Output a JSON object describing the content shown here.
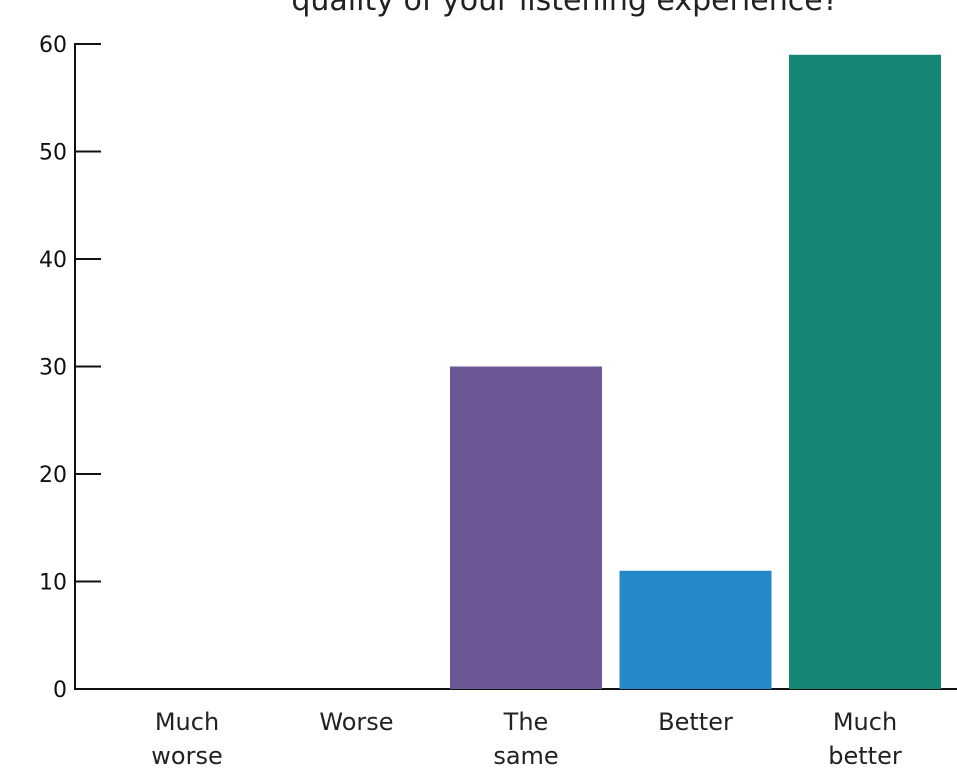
{
  "chart_data": {
    "type": "bar",
    "title": "quality of your listening experience?",
    "categories": [
      [
        "Much",
        "worse"
      ],
      [
        "Worse"
      ],
      [
        "The",
        "same"
      ],
      [
        "Better"
      ],
      [
        "Much",
        "better"
      ]
    ],
    "values": [
      0,
      0,
      30,
      11,
      59
    ],
    "colors": [
      "#6c5794",
      "#6c5794",
      "#6c5794",
      "#2389c9",
      "#168774"
    ],
    "ylim": [
      0,
      60
    ],
    "yticks": [
      0,
      10,
      20,
      30,
      40,
      50,
      60
    ],
    "xlabel": "",
    "ylabel": "",
    "grid": false,
    "legend": "none"
  }
}
